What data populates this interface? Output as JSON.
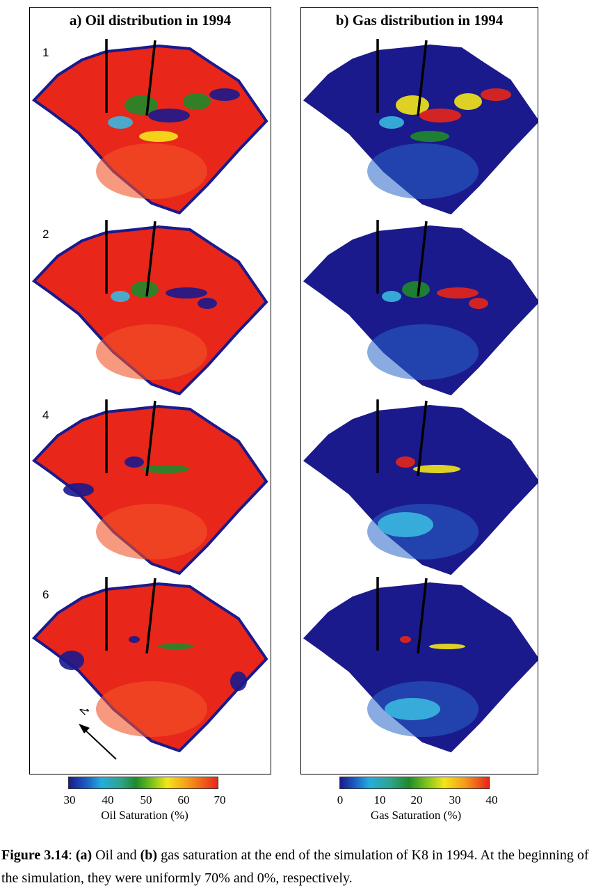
{
  "panels": {
    "a": {
      "title": "a)  Oil distribution in 1994"
    },
    "b": {
      "title": "b)  Gas distribution in 1994"
    }
  },
  "row_labels": [
    "1",
    "2",
    "4",
    "6"
  ],
  "north_label": "N",
  "colorbars": {
    "oil": {
      "ticks": [
        "30",
        "40",
        "50",
        "60",
        "70"
      ],
      "label": "Oil Saturation (%)"
    },
    "gas": {
      "ticks": [
        "0",
        "10",
        "20",
        "30",
        "40"
      ],
      "label": "Gas Saturation (%)"
    }
  },
  "colors": {
    "oil_base": "#e8261a",
    "gas_base": "#1a1a8c",
    "saturation_high": "#e8261a",
    "saturation_mid": "#1f8a2a",
    "saturation_low": "#1a1a8c",
    "light_blue": "#3ab8e0",
    "yellow": "#f4e51a"
  },
  "caption": {
    "figure_label": "Figure 3.14",
    "a_label": "(a)",
    "b_label": "(b)",
    "part1": ": ",
    "part2": " Oil and ",
    "part3": " gas saturation at the end of the simulation of K8 in 1994. At the beginning of the simulation, they were uniformly 70% and 0%, respectively."
  }
}
